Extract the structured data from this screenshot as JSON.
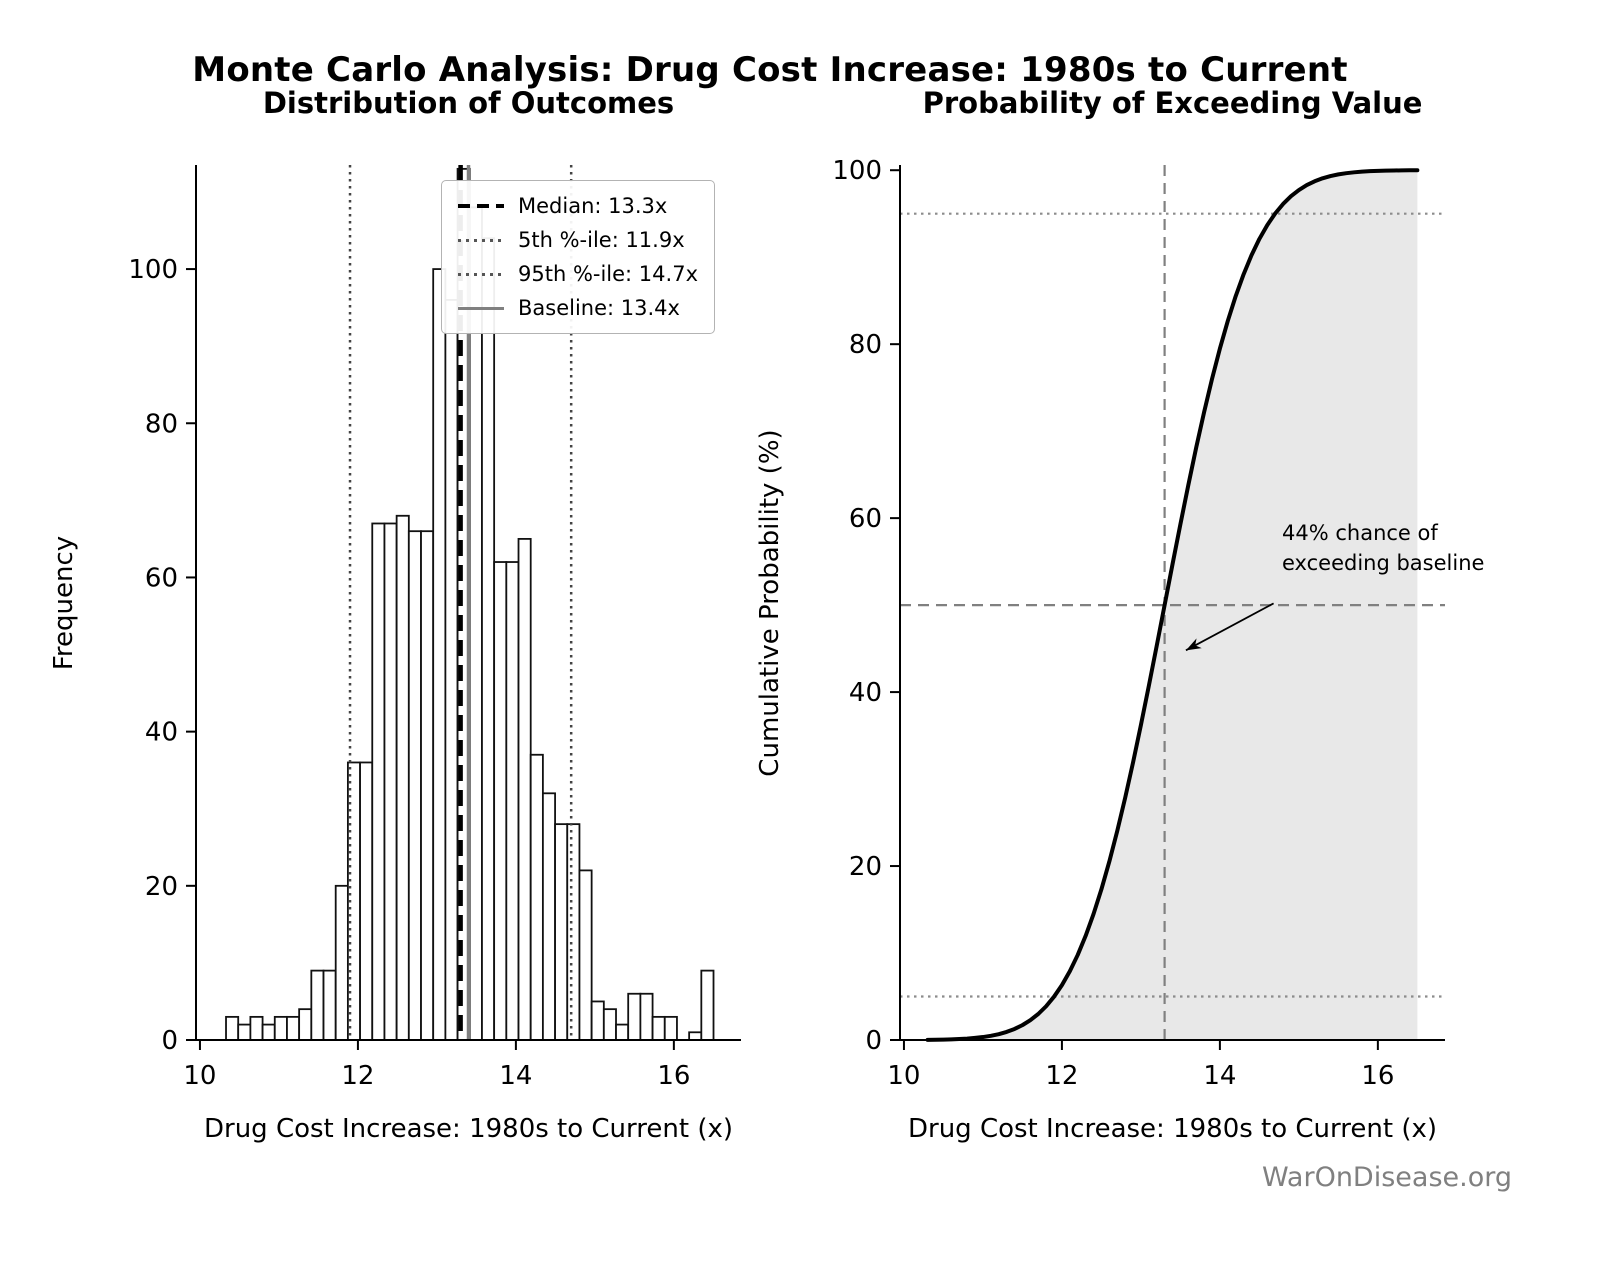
{
  "figure": {
    "title": "Monte Carlo Analysis: Drug Cost Increase: 1980s to Current",
    "watermark": "WarOnDisease.org"
  },
  "chart_data": [
    {
      "type": "bar",
      "subtype": "histogram",
      "title": "Distribution of Outcomes",
      "xlabel": "Drug Cost Increase: 1980s to Current (x)",
      "ylabel": "Frequency",
      "xlim": [
        9.95,
        16.85
      ],
      "ylim": [
        0,
        113.5
      ],
      "xticks": [
        10,
        12,
        14,
        16
      ],
      "yticks": [
        0,
        20,
        40,
        60,
        80,
        100
      ],
      "bin_start": 10.33,
      "bin_width": 0.1543,
      "counts": [
        3,
        2,
        3,
        2,
        3,
        3,
        4,
        9,
        9,
        20,
        36,
        36,
        67,
        67,
        68,
        66,
        66,
        100,
        96,
        113,
        108,
        104,
        62,
        62,
        65,
        37,
        32,
        28,
        28,
        22,
        5,
        4,
        2,
        6,
        6,
        3,
        3,
        0,
        1,
        9
      ],
      "bar_fill": "#ffffff",
      "bar_edge": "#111111",
      "reference_lines": [
        {
          "label": "Median: 13.3x",
          "x": 13.3,
          "style": "dashed",
          "color": "#000000",
          "width": 4.5
        },
        {
          "label": "5th %-ile: 11.9x",
          "x": 11.9,
          "style": "dotted",
          "color": "#444444",
          "width": 2.5
        },
        {
          "label": "95th %-ile: 14.7x",
          "x": 14.7,
          "style": "dotted",
          "color": "#444444",
          "width": 2.5
        },
        {
          "label": "Baseline: 13.4x",
          "x": 13.4,
          "style": "solid",
          "color": "#808080",
          "width": 3.5
        }
      ]
    },
    {
      "type": "line",
      "subtype": "cdf",
      "title": "Probability of Exceeding Value",
      "xlabel": "Drug Cost Increase: 1980s to Current (x)",
      "ylabel": "Cumulative Probability (%)",
      "xlim": [
        9.95,
        16.85
      ],
      "ylim": [
        0,
        100.6
      ],
      "xticks": [
        10,
        12,
        14,
        16
      ],
      "yticks": [
        0,
        20,
        40,
        60,
        80,
        100
      ],
      "x": [
        10.3,
        10.4,
        10.5,
        10.6,
        10.7,
        10.8,
        10.9,
        11.0,
        11.1,
        11.2,
        11.3,
        11.4,
        11.5,
        11.6,
        11.7,
        11.8,
        11.9,
        12.0,
        12.1,
        12.2,
        12.3,
        12.4,
        12.5,
        12.6,
        12.7,
        12.8,
        12.9,
        13.0,
        13.1,
        13.2,
        13.3,
        13.4,
        13.5,
        13.6,
        13.7,
        13.8,
        13.9,
        14.0,
        14.1,
        14.2,
        14.3,
        14.4,
        14.5,
        14.6,
        14.7,
        14.8,
        14.9,
        15.0,
        15.1,
        15.2,
        15.3,
        15.4,
        15.5,
        15.6,
        15.7,
        15.8,
        15.9,
        16.0,
        16.1,
        16.2,
        16.3,
        16.4,
        16.5
      ],
      "y": [
        0.02,
        0.03,
        0.05,
        0.07,
        0.11,
        0.16,
        0.24,
        0.34,
        0.48,
        0.67,
        0.93,
        1.27,
        1.71,
        2.28,
        2.99,
        3.88,
        4.98,
        6.31,
        7.9,
        9.78,
        11.97,
        14.48,
        17.33,
        20.51,
        24.01,
        27.82,
        31.89,
        36.21,
        40.7,
        45.31,
        50.0,
        54.69,
        59.3,
        63.79,
        68.11,
        72.18,
        75.99,
        79.49,
        82.67,
        85.52,
        88.03,
        90.22,
        92.1,
        93.69,
        95.02,
        96.12,
        97.01,
        97.72,
        98.29,
        98.73,
        99.07,
        99.33,
        99.52,
        99.66,
        99.76,
        99.84,
        99.89,
        99.93,
        99.95,
        99.97,
        99.98,
        99.99,
        100.0
      ],
      "line_color": "#000000",
      "fill_color": "#e8e8e8",
      "hlines": [
        {
          "y": 5,
          "style": "dotted",
          "color": "#8c8c8c"
        },
        {
          "y": 95,
          "style": "dotted",
          "color": "#8c8c8c"
        },
        {
          "y": 50,
          "style": "dashed",
          "color": "#808080"
        }
      ],
      "vlines": [
        {
          "x": 13.3,
          "style": "dashed",
          "color": "#808080"
        }
      ],
      "annotation": {
        "text": "44% chance of\nexceeding baseline",
        "arrow_from": [
          14.68,
          50.2
        ],
        "arrow_to": [
          13.57,
          44.8
        ]
      }
    }
  ]
}
